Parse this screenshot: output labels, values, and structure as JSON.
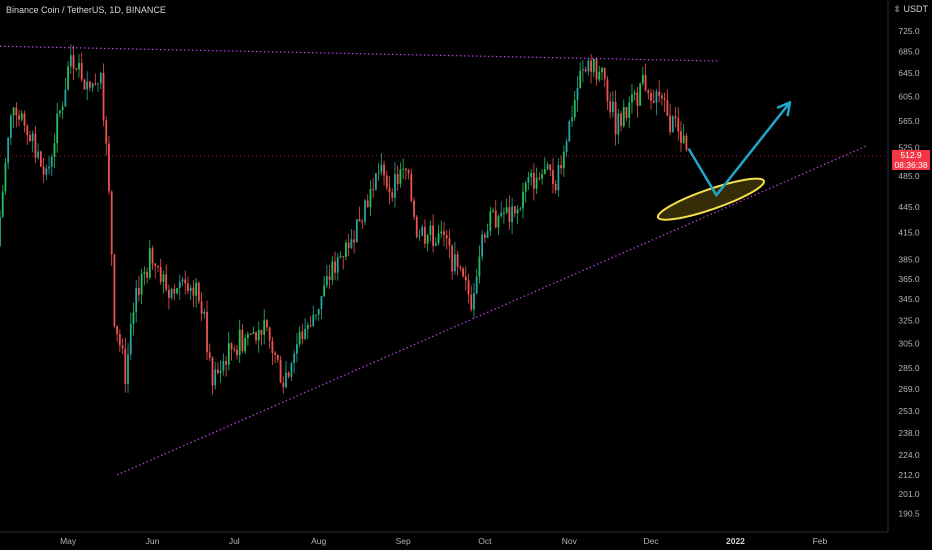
{
  "header": {
    "symbol": "Binance Coin / TetherUS, 1D, BINANCE"
  },
  "currency": "USDT",
  "current_price": {
    "value": "512.9",
    "countdown": "08:36:38"
  },
  "colors": {
    "background": "#000000",
    "up": "#26a69a",
    "up_bright": "#22c15a",
    "down": "#ef5350",
    "trendline": "#c043e8",
    "ellipse": "#f5e04a",
    "arrow": "#1ea7c9",
    "axis_text": "#b2b5be",
    "price_tag": "#f23645"
  },
  "chart_data": {
    "type": "candlestick",
    "title": "Binance Coin / TetherUS, 1D, BINANCE",
    "xlabel": "",
    "ylabel": "",
    "y_scale": "log",
    "ylim": [
      181,
      790
    ],
    "y_ticks": [
      "725.0",
      "685.0",
      "645.0",
      "605.0",
      "565.0",
      "525.0",
      "485.0",
      "445.0",
      "415.0",
      "385.0",
      "365.0",
      "345.0",
      "325.0",
      "305.0",
      "285.0",
      "269.0",
      "253.0",
      "238.0",
      "224.0",
      "212.0",
      "201.0",
      "190.5"
    ],
    "x_ticks": [
      "May",
      "Jun",
      "Jul",
      "Aug",
      "Sep",
      "Oct",
      "Nov",
      "Dec",
      "2022",
      "Feb"
    ],
    "x_range": [
      "2021-04-06",
      "2022-02-26"
    ],
    "price_path": [
      [
        "2021-04-06",
        400
      ],
      [
        "2021-04-12",
        600
      ],
      [
        "2021-04-18",
        540
      ],
      [
        "2021-04-24",
        480
      ],
      [
        "2021-04-30",
        600
      ],
      [
        "2021-05-03",
        680
      ],
      [
        "2021-05-10",
        620
      ],
      [
        "2021-05-14",
        650
      ],
      [
        "2021-05-19",
        330
      ],
      [
        "2021-05-23",
        280
      ],
      [
        "2021-05-28",
        360
      ],
      [
        "2021-06-02",
        390
      ],
      [
        "2021-06-08",
        350
      ],
      [
        "2021-06-14",
        370
      ],
      [
        "2021-06-20",
        340
      ],
      [
        "2021-06-24",
        270
      ],
      [
        "2021-06-30",
        300
      ],
      [
        "2021-07-06",
        310
      ],
      [
        "2021-07-12",
        320
      ],
      [
        "2021-07-16",
        300
      ],
      [
        "2021-07-20",
        275
      ],
      [
        "2021-07-26",
        310
      ],
      [
        "2021-08-02",
        340
      ],
      [
        "2021-08-08",
        380
      ],
      [
        "2021-08-14",
        410
      ],
      [
        "2021-08-19",
        450
      ],
      [
        "2021-08-24",
        490
      ],
      [
        "2021-08-28",
        470
      ],
      [
        "2021-09-03",
        490
      ],
      [
        "2021-09-07",
        420
      ],
      [
        "2021-09-12",
        410
      ],
      [
        "2021-09-17",
        410
      ],
      [
        "2021-09-22",
        370
      ],
      [
        "2021-09-27",
        345
      ],
      [
        "2021-10-02",
        420
      ],
      [
        "2021-10-08",
        440
      ],
      [
        "2021-10-13",
        430
      ],
      [
        "2021-10-17",
        470
      ],
      [
        "2021-10-22",
        490
      ],
      [
        "2021-10-28",
        480
      ],
      [
        "2021-11-02",
        560
      ],
      [
        "2021-11-06",
        640
      ],
      [
        "2021-11-10",
        655
      ],
      [
        "2021-11-15",
        630
      ],
      [
        "2021-11-19",
        560
      ],
      [
        "2021-11-24",
        580
      ],
      [
        "2021-11-29",
        630
      ],
      [
        "2021-12-03",
        615
      ],
      [
        "2021-12-08",
        570
      ],
      [
        "2021-12-12",
        555
      ],
      [
        "2021-12-15",
        512.9
      ]
    ],
    "annotations": {
      "resistance_line": [
        [
          "2021-04-06",
          695
        ],
        [
          "2021-12-26",
          667
        ]
      ],
      "support_line": [
        [
          "2021-05-19",
          212
        ],
        [
          "2022-02-18",
          527
        ]
      ],
      "ellipse_center": [
        "2021-12-23",
        455
      ],
      "projection_arrow": [
        [
          "2021-12-15",
          522
        ],
        [
          "2021-12-25",
          460
        ],
        [
          "2022-01-21",
          595
        ]
      ]
    }
  }
}
